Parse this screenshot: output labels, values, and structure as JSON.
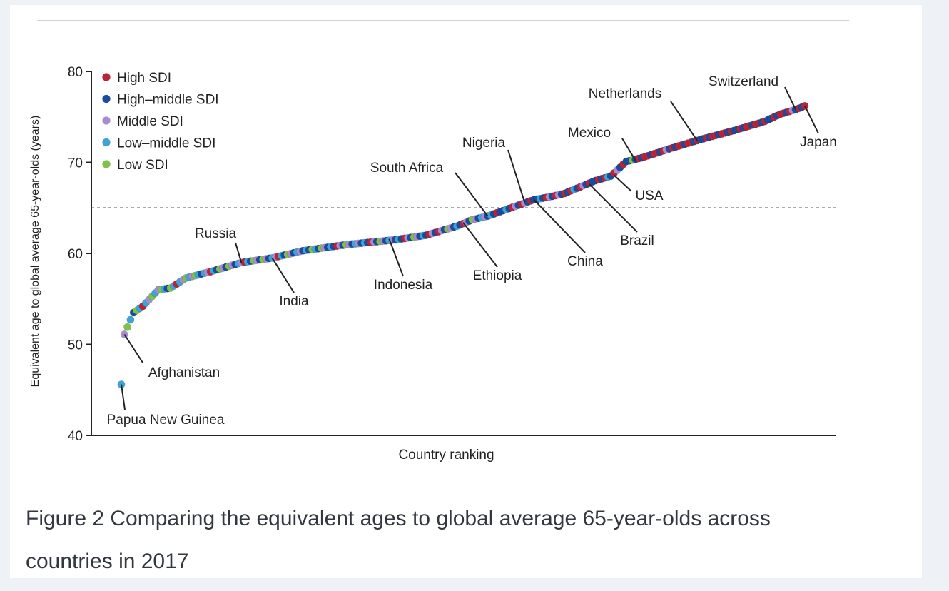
{
  "chart_data": {
    "type": "scatter",
    "xlabel": "Country ranking",
    "ylabel": "Equivalent age to global average 65-year-olds (years)",
    "ylim": [
      40,
      80
    ],
    "yticks": [
      "40",
      "50",
      "60",
      "70",
      "80"
    ],
    "yticks_values": [
      40,
      50,
      60,
      70,
      80
    ],
    "reference_line": {
      "y": 65,
      "style": "dotted"
    },
    "grid": false,
    "legend_position": "top-left",
    "n_countries": 195,
    "series": [
      {
        "name": "High SDI",
        "color": "#b8243a"
      },
      {
        "name": "High–middle SDI",
        "color": "#1c4a9c"
      },
      {
        "name": "Middle SDI",
        "color": "#a98bd1"
      },
      {
        "name": "Low–middle SDI",
        "color": "#3ea4d6"
      },
      {
        "name": "Low SDI",
        "color": "#7fc24a"
      }
    ],
    "curve": [
      [
        1,
        45.6
      ],
      [
        2,
        51.1
      ],
      [
        3,
        51.9
      ],
      [
        5,
        53.5
      ],
      [
        8,
        54.2
      ],
      [
        13,
        56.0
      ],
      [
        17,
        56.2
      ],
      [
        22,
        57.3
      ],
      [
        30,
        58.0
      ],
      [
        40,
        59.0
      ],
      [
        50,
        59.5
      ],
      [
        60,
        60.3
      ],
      [
        75,
        61.0
      ],
      [
        90,
        61.5
      ],
      [
        100,
        62.0
      ],
      [
        110,
        63.0
      ],
      [
        115,
        63.7
      ],
      [
        120,
        64.1
      ],
      [
        125,
        64.7
      ],
      [
        130,
        65.3
      ],
      [
        135,
        65.9
      ],
      [
        140,
        66.2
      ],
      [
        145,
        66.6
      ],
      [
        150,
        67.3
      ],
      [
        155,
        68.0
      ],
      [
        160,
        68.5
      ],
      [
        165,
        70.1
      ],
      [
        170,
        70.5
      ],
      [
        180,
        71.6
      ],
      [
        190,
        72.6
      ],
      [
        200,
        73.5
      ],
      [
        210,
        74.5
      ],
      [
        215,
        75.3
      ],
      [
        220,
        75.8
      ],
      [
        223,
        76.2
      ]
    ],
    "points_total": 223,
    "annotations": [
      {
        "label": "Papua New Guinea",
        "rank": 1,
        "value": 45.6
      },
      {
        "label": "Afghanistan",
        "rank": 2,
        "value": 51.1
      },
      {
        "label": "Russia",
        "rank": 40,
        "value": 59.0
      },
      {
        "label": "India",
        "rank": 50,
        "value": 59.5
      },
      {
        "label": "Indonesia",
        "rank": 88,
        "value": 61.6
      },
      {
        "label": "South Africa",
        "rank": 120,
        "value": 64.1
      },
      {
        "label": "Ethiopia",
        "rank": 112,
        "value": 63.4
      },
      {
        "label": "Nigeria",
        "rank": 132,
        "value": 65.6
      },
      {
        "label": "China",
        "rank": 135,
        "value": 65.9
      },
      {
        "label": "Brazil",
        "rank": 153,
        "value": 67.6
      },
      {
        "label": "USA",
        "rank": 161,
        "value": 68.6
      },
      {
        "label": "Mexico",
        "rank": 168,
        "value": 70.2
      },
      {
        "label": "Netherlands",
        "rank": 188,
        "value": 72.4
      },
      {
        "label": "Switzerland",
        "rank": 220,
        "value": 75.8
      },
      {
        "label": "Japan",
        "rank": 223,
        "value": 76.2
      }
    ]
  },
  "caption": {
    "line1": "Figure 2  Comparing the equivalent ages to global average 65-year-olds across",
    "line2": "countries in 2017"
  }
}
